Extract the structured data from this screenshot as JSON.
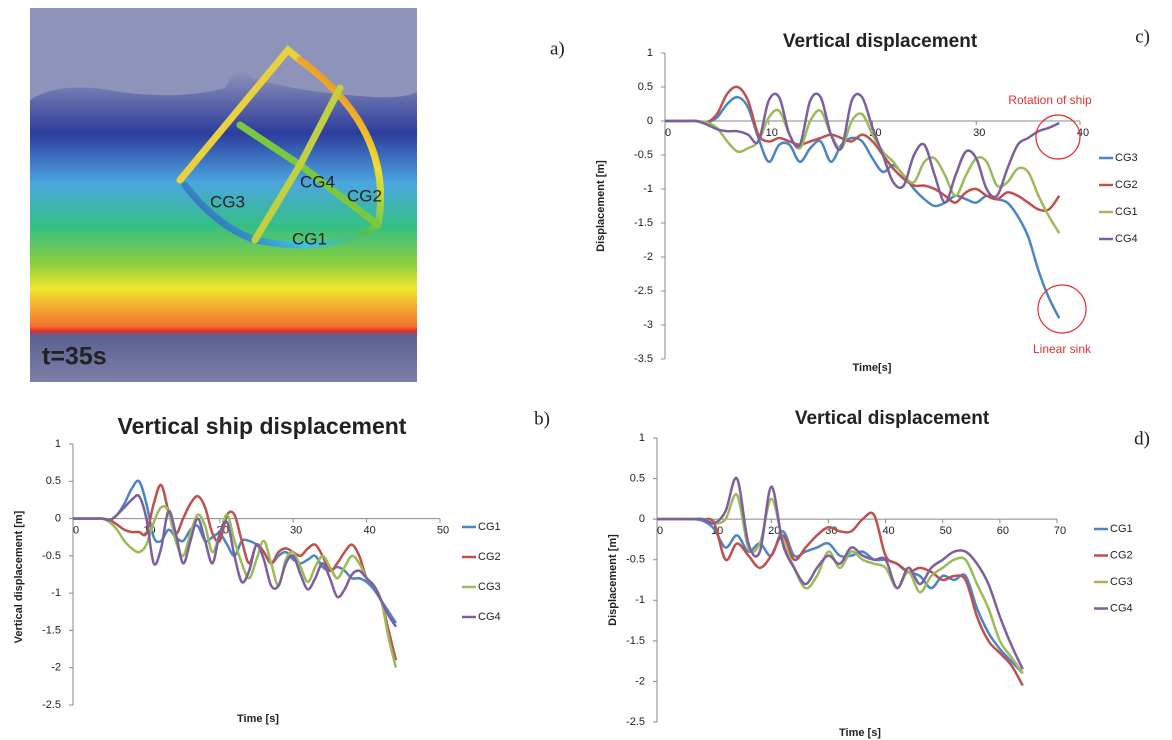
{
  "image": {
    "panel_label": "a)",
    "time_label": "t=35s",
    "labels": [
      "CG4",
      "CG3",
      "CG2",
      "CG1"
    ]
  },
  "chart_data": [
    {
      "type": "line",
      "panel_label": "c)",
      "title": "Vertical displacement",
      "x_label": "Time[s]",
      "y_label": "Displacement [m]",
      "annotations": [
        "Rotation of ship",
        "Linear sink"
      ],
      "xlim": [
        0,
        40
      ],
      "xticks": [
        0,
        10,
        20,
        30,
        40
      ],
      "ylim": [
        -3.5,
        1
      ],
      "yticks": [
        1,
        0.5,
        0,
        -0.5,
        -1,
        -1.5,
        -2,
        -2.5,
        -3,
        -3.5
      ],
      "grid": false,
      "legend": "right",
      "x": [
        0,
        1,
        2,
        3,
        4,
        5,
        6,
        7,
        8,
        9,
        10,
        11,
        12,
        13,
        14,
        15,
        16,
        17,
        18,
        19,
        20,
        21,
        22,
        23,
        24,
        25,
        26,
        27,
        28,
        29,
        30,
        31,
        32,
        33,
        34,
        35,
        36,
        37,
        38
      ],
      "series": [
        {
          "name": "CG3",
          "color": "#4a86c5",
          "values": [
            0,
            0,
            0,
            0,
            -0.02,
            0.05,
            0.25,
            0.35,
            0.2,
            -0.25,
            -0.6,
            -0.35,
            -0.35,
            -0.6,
            -0.4,
            -0.3,
            -0.6,
            -0.35,
            -0.25,
            -0.3,
            -0.55,
            -0.75,
            -0.65,
            -0.8,
            -1.0,
            -1.15,
            -1.25,
            -1.2,
            -1.1,
            -1.15,
            -1.2,
            -1.1,
            -1.15,
            -1.2,
            -1.4,
            -1.7,
            -2.2,
            -2.6,
            -2.9
          ]
        },
        {
          "name": "CG2",
          "color": "#c0504d",
          "values": [
            0,
            0,
            0,
            0,
            -0.02,
            0.1,
            0.4,
            0.5,
            0.3,
            -0.2,
            -0.3,
            -0.25,
            -0.3,
            -0.35,
            -0.3,
            -0.25,
            -0.2,
            -0.25,
            -0.3,
            -0.2,
            -0.3,
            -0.5,
            -0.7,
            -0.85,
            -0.95,
            -0.95,
            -1.0,
            -1.1,
            -1.2,
            -1.05,
            -1.0,
            -1.1,
            -1.15,
            -1.05,
            -1.1,
            -1.2,
            -1.3,
            -1.3,
            -1.1
          ]
        },
        {
          "name": "CG1",
          "color": "#9bbb59",
          "values": [
            0,
            0,
            0,
            0,
            -0.02,
            -0.1,
            -0.3,
            -0.45,
            -0.4,
            -0.3,
            0.05,
            0.15,
            -0.2,
            -0.4,
            0,
            0.15,
            -0.2,
            -0.4,
            0,
            0.1,
            -0.2,
            -0.45,
            -0.6,
            -0.8,
            -0.9,
            -0.6,
            -0.55,
            -0.8,
            -1.1,
            -0.8,
            -0.55,
            -0.6,
            -0.95,
            -0.9,
            -0.7,
            -0.75,
            -1.1,
            -1.4,
            -1.65
          ]
        },
        {
          "name": "CG4",
          "color": "#7d5fa0",
          "values": [
            0,
            0,
            0,
            0,
            -0.05,
            -0.12,
            -0.15,
            -0.15,
            -0.2,
            -0.3,
            0.3,
            0.35,
            -0.2,
            -0.35,
            0.3,
            0.35,
            -0.2,
            -0.4,
            0.3,
            0.35,
            -0.1,
            -0.5,
            -0.9,
            -0.95,
            -0.5,
            -0.35,
            -0.8,
            -1.2,
            -0.8,
            -0.45,
            -0.55,
            -1.0,
            -1.1,
            -0.7,
            -0.35,
            -0.25,
            -0.15,
            -0.1,
            -0.03
          ]
        }
      ]
    },
    {
      "type": "line",
      "panel_label": "b)",
      "title": "Vertical ship displacement",
      "x_label": "Time [s]",
      "y_label": "Vertical displacement [m]",
      "xlim": [
        0,
        50
      ],
      "xticks": [
        0,
        10,
        20,
        30,
        40,
        50
      ],
      "ylim": [
        -2.5,
        1
      ],
      "yticks": [
        1,
        0.5,
        0,
        -0.5,
        -1,
        -1.5,
        -2,
        -2.5
      ],
      "grid": false,
      "legend": "right",
      "x": [
        0,
        1,
        2,
        3,
        4,
        5,
        6,
        7,
        8,
        9,
        10,
        11,
        12,
        13,
        14,
        15,
        16,
        17,
        18,
        19,
        20,
        21,
        22,
        23,
        24,
        25,
        26,
        27,
        28,
        29,
        30,
        31,
        32,
        33,
        34,
        35,
        36,
        37,
        38,
        39,
        40,
        41,
        42,
        43,
        44
      ],
      "series": [
        {
          "name": "CG1",
          "color": "#4a86c5",
          "values": [
            0,
            0,
            0,
            0,
            0,
            -0.02,
            0.05,
            0.2,
            0.4,
            0.5,
            0.2,
            -0.25,
            -0.3,
            -0.15,
            -0.25,
            -0.3,
            -0.15,
            -0.1,
            -0.3,
            -0.25,
            -0.2,
            -0.35,
            -0.5,
            -0.3,
            -0.3,
            -0.35,
            -0.45,
            -0.6,
            -0.5,
            -0.45,
            -0.55,
            -0.6,
            -0.55,
            -0.5,
            -0.65,
            -0.7,
            -0.65,
            -0.7,
            -0.8,
            -0.8,
            -0.85,
            -0.95,
            -1.1,
            -1.25,
            -1.4
          ]
        },
        {
          "name": "CG2",
          "color": "#c0504d",
          "values": [
            0,
            0,
            0,
            0,
            0,
            -0.02,
            -0.08,
            -0.15,
            -0.18,
            -0.18,
            -0.2,
            0.2,
            0.45,
            0.1,
            -0.2,
            0,
            0.2,
            0.3,
            0.15,
            -0.2,
            -0.3,
            0.05,
            0.05,
            -0.3,
            -0.6,
            -0.35,
            -0.45,
            -0.6,
            -0.45,
            -0.4,
            -0.45,
            -0.5,
            -0.4,
            -0.35,
            -0.5,
            -0.7,
            -0.6,
            -0.45,
            -0.35,
            -0.5,
            -0.8,
            -0.9,
            -1.1,
            -1.5,
            -1.9
          ]
        },
        {
          "name": "CG3",
          "color": "#9bbb59",
          "values": [
            0,
            0,
            0,
            0,
            0,
            -0.05,
            -0.15,
            -0.3,
            -0.4,
            -0.45,
            -0.35,
            -0.05,
            0.15,
            0.1,
            -0.3,
            -0.5,
            -0.2,
            0.05,
            -0.1,
            -0.45,
            -0.2,
            0.05,
            -0.3,
            -0.6,
            -0.8,
            -0.55,
            -0.3,
            -0.6,
            -0.9,
            -0.55,
            -0.45,
            -0.65,
            -0.85,
            -0.65,
            -0.5,
            -0.65,
            -0.8,
            -0.65,
            -0.5,
            -0.6,
            -0.8,
            -0.9,
            -1.1,
            -1.6,
            -2.0
          ]
        },
        {
          "name": "CG4",
          "color": "#7d5fa0",
          "values": [
            0,
            0,
            0,
            0,
            0,
            -0.02,
            0.05,
            0.15,
            0.25,
            0.3,
            0,
            -0.6,
            -0.4,
            0.1,
            -0.2,
            -0.6,
            -0.3,
            0,
            -0.3,
            -0.6,
            -0.2,
            -0.05,
            -0.5,
            -0.85,
            -0.7,
            -0.35,
            -0.55,
            -0.9,
            -0.9,
            -0.6,
            -0.5,
            -0.75,
            -0.95,
            -0.8,
            -0.6,
            -0.8,
            -1.05,
            -0.95,
            -0.75,
            -0.7,
            -0.8,
            -0.9,
            -1.1,
            -1.3,
            -1.45
          ]
        }
      ]
    },
    {
      "type": "line",
      "panel_label": "d)",
      "title": "Vertical displacement",
      "x_label": "Time [s]",
      "y_label": "Displacement [m]",
      "xlim": [
        0,
        70
      ],
      "xticks": [
        0,
        10,
        20,
        30,
        40,
        50,
        60,
        70
      ],
      "ylim": [
        -2.5,
        1
      ],
      "yticks": [
        1,
        0.5,
        0,
        -0.5,
        -1,
        -1.5,
        -2,
        -2.5
      ],
      "grid": false,
      "legend": "right",
      "x": [
        0,
        2,
        4,
        6,
        8,
        10,
        12,
        14,
        16,
        18,
        20,
        22,
        24,
        26,
        28,
        30,
        32,
        34,
        36,
        38,
        40,
        42,
        44,
        46,
        48,
        50,
        52,
        54,
        56,
        58,
        60,
        62,
        64
      ],
      "series": [
        {
          "name": "CG1",
          "color": "#4a86c5",
          "values": [
            0,
            0,
            0,
            0,
            -0.02,
            -0.12,
            -0.35,
            -0.2,
            -0.4,
            -0.3,
            -0.45,
            -0.15,
            -0.45,
            -0.4,
            -0.35,
            -0.3,
            -0.45,
            -0.45,
            -0.4,
            -0.5,
            -0.5,
            -0.55,
            -0.65,
            -0.7,
            -0.85,
            -0.7,
            -0.75,
            -0.7,
            -1.1,
            -1.4,
            -1.6,
            -1.75,
            -1.9
          ]
        },
        {
          "name": "CG2",
          "color": "#c0504d",
          "values": [
            0,
            0,
            0,
            0,
            0,
            -0.05,
            -0.5,
            -0.3,
            -0.45,
            -0.6,
            -0.45,
            -0.2,
            -0.5,
            -0.35,
            -0.2,
            -0.1,
            -0.15,
            -0.15,
            0,
            0.05,
            -0.45,
            -0.55,
            -0.65,
            -0.6,
            -0.65,
            -0.75,
            -0.7,
            -0.75,
            -1.2,
            -1.5,
            -1.65,
            -1.8,
            -2.05
          ]
        },
        {
          "name": "CG3",
          "color": "#9bbb59",
          "values": [
            0,
            0,
            0,
            0,
            0,
            -0.05,
            0,
            0.3,
            -0.35,
            -0.3,
            0.25,
            -0.25,
            -0.6,
            -0.85,
            -0.7,
            -0.4,
            -0.6,
            -0.4,
            -0.5,
            -0.55,
            -0.6,
            -0.85,
            -0.65,
            -0.9,
            -0.7,
            -0.6,
            -0.5,
            -0.5,
            -0.8,
            -1.1,
            -1.5,
            -1.7,
            -1.9
          ]
        },
        {
          "name": "CG4",
          "color": "#7d5fa0",
          "values": [
            0,
            0,
            0,
            0,
            0,
            -0.05,
            0.1,
            0.5,
            -0.3,
            -0.4,
            0.4,
            -0.3,
            -0.6,
            -0.8,
            -0.6,
            -0.45,
            -0.55,
            -0.35,
            -0.45,
            -0.5,
            -0.5,
            -0.85,
            -0.6,
            -0.8,
            -0.6,
            -0.5,
            -0.4,
            -0.4,
            -0.55,
            -0.8,
            -1.2,
            -1.55,
            -1.85
          ]
        }
      ]
    }
  ]
}
